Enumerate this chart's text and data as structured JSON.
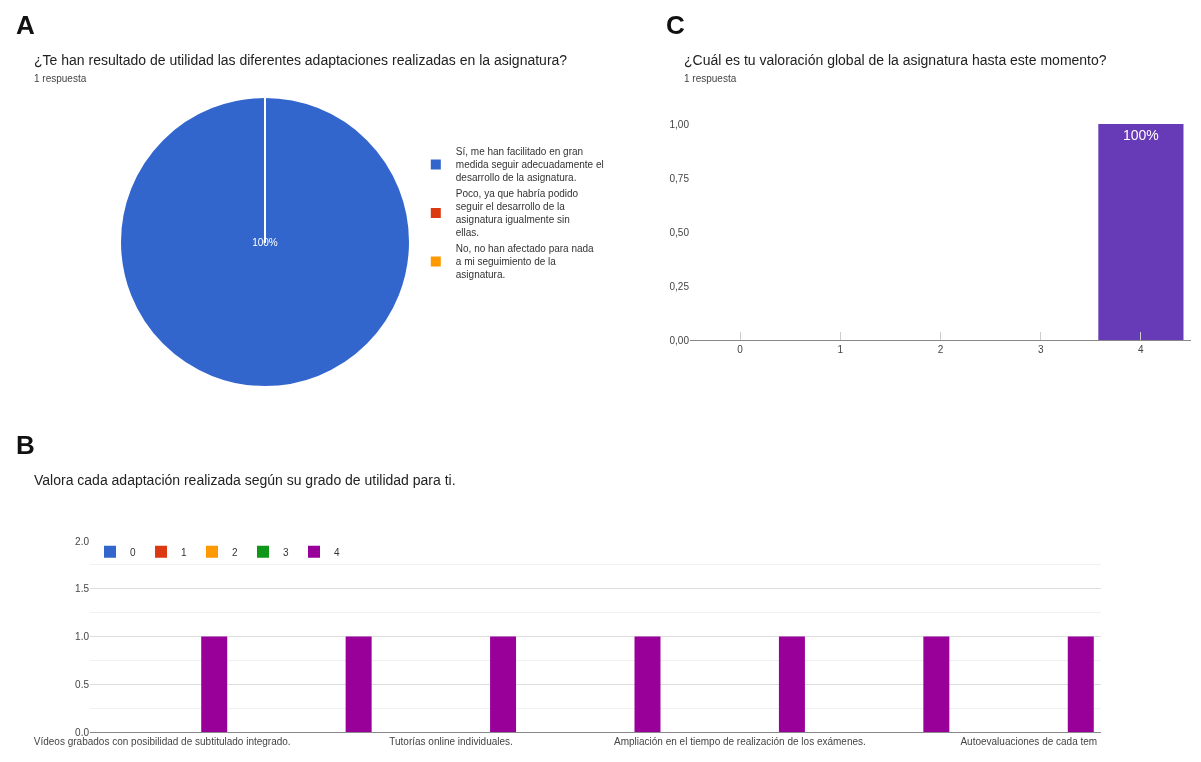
{
  "chart_data": [
    {
      "type": "pie",
      "annotations": [
        "A"
      ],
      "title": "¿Te han resultado de utilidad las diferentes adaptaciones realizadas en la asignatura?",
      "subtitle": "1 respuesta",
      "categories": [
        "Sí, me han facilitado en gran medida seguir adecuadamente el desarrollo de la asignatura.",
        "Poco, ya que habría podido seguir el desarrollo de la asignatura igualmente sin ellas.",
        "No, no han afectado para nada a mi seguimiento de la asignatura."
      ],
      "values": [
        100,
        0,
        0
      ],
      "colors": [
        "#3366cc",
        "#dc3912",
        "#ff9900"
      ],
      "value_labels": [
        "100%",
        null,
        null
      ],
      "legend": "right"
    },
    {
      "type": "bar",
      "annotations": [
        "C"
      ],
      "title": "¿Cuál es tu valoración global de la asignatura hasta este momento?",
      "subtitle": "1 respuesta",
      "categories": [
        "0",
        "1",
        "2",
        "3",
        "4"
      ],
      "values": [
        0,
        0,
        0,
        0,
        1
      ],
      "color": "#673ab7",
      "value_labels": [
        null,
        null,
        null,
        null,
        "100%"
      ],
      "ylim": [
        0,
        1
      ],
      "yticks": [
        {
          "value": 0,
          "label": "0,00"
        },
        {
          "value": 0.25,
          "label": "0,25"
        },
        {
          "value": 0.5,
          "label": "0,50"
        },
        {
          "value": 0.75,
          "label": "0,75"
        },
        {
          "value": 1,
          "label": "1,00"
        }
      ]
    },
    {
      "type": "bar",
      "annotations": [
        "B"
      ],
      "title": "Valora cada adaptación realizada según su grado de utilidad para ti.",
      "categories": [
        "Vídeos grabados con posibilidad de subtitulado integrado.",
        null,
        "Tutorías online individuales.",
        null,
        "Ampliación en el tiempo de realización de los exámenes.",
        null,
        "Autoevaluaciones de cada tem"
      ],
      "series": [
        {
          "name": "0",
          "color": "#3366cc",
          "values": [
            0,
            0,
            0,
            0,
            0,
            0,
            0
          ]
        },
        {
          "name": "1",
          "color": "#dc3912",
          "values": [
            0,
            0,
            0,
            0,
            0,
            0,
            0
          ]
        },
        {
          "name": "2",
          "color": "#ff9900",
          "values": [
            0,
            0,
            0,
            0,
            0,
            0,
            0
          ]
        },
        {
          "name": "3",
          "color": "#109618",
          "values": [
            0,
            0,
            0,
            0,
            0,
            0,
            0
          ]
        },
        {
          "name": "4",
          "color": "#990099",
          "values": [
            1,
            1,
            1,
            1,
            1,
            1,
            1
          ]
        }
      ],
      "ylim": [
        0,
        2
      ],
      "yticks": [
        {
          "value": 0,
          "label": "0.0"
        },
        {
          "value": 0.5,
          "label": "0.5"
        },
        {
          "value": 1,
          "label": "1.0"
        },
        {
          "value": 1.5,
          "label": "1.5"
        },
        {
          "value": 2,
          "label": "2.0"
        }
      ],
      "grid": "y",
      "legend": "top left"
    }
  ]
}
